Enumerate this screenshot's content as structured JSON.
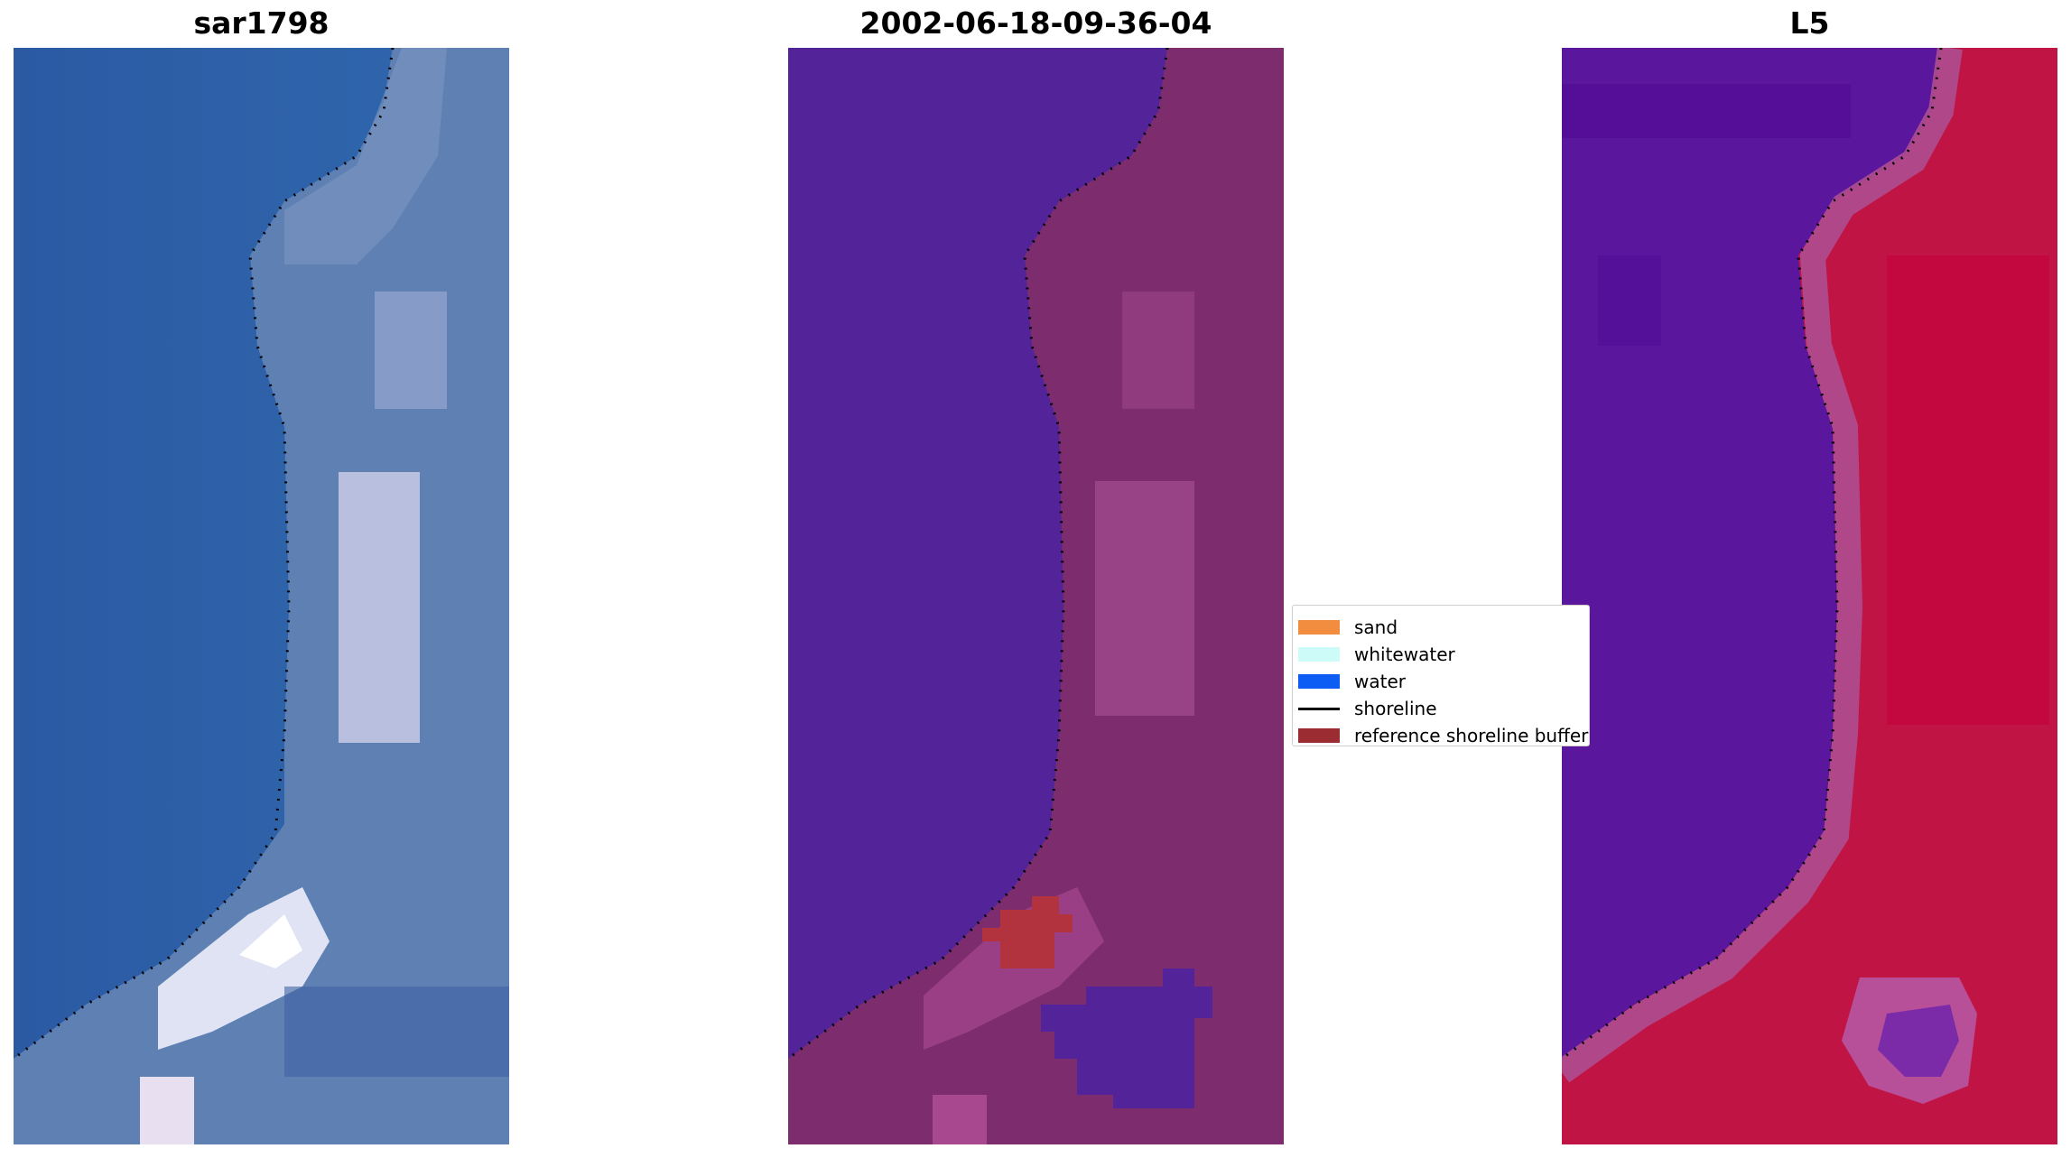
{
  "panels": [
    {
      "title": "sar1798"
    },
    {
      "title": "2002-06-18-09-36-04"
    },
    {
      "title": "L5"
    }
  ],
  "legend": {
    "items": [
      {
        "label": "sand",
        "color": "#f28c3f",
        "kind": "patch"
      },
      {
        "label": "whitewater",
        "color": "#ccfbf8",
        "kind": "patch"
      },
      {
        "label": "water",
        "color": "#0d5cf3",
        "kind": "patch"
      },
      {
        "label": "shoreline",
        "color": "#000000",
        "kind": "line"
      },
      {
        "label": "reference shoreline buffer",
        "color": "#9b2c32",
        "kind": "patch"
      }
    ]
  },
  "colors": {
    "rgb_water": "#2f5fa8",
    "rgb_land": "#5f80b2",
    "rgb_white": "#e4e4f2",
    "class_water": "#522399",
    "class_land": "#7d2d6e",
    "class_land_light": "#a34d8f",
    "class_buffer": "#b2323d",
    "index_water": "#5b169e",
    "index_land": "#c01445",
    "index_edge": "#ad4d8f"
  }
}
